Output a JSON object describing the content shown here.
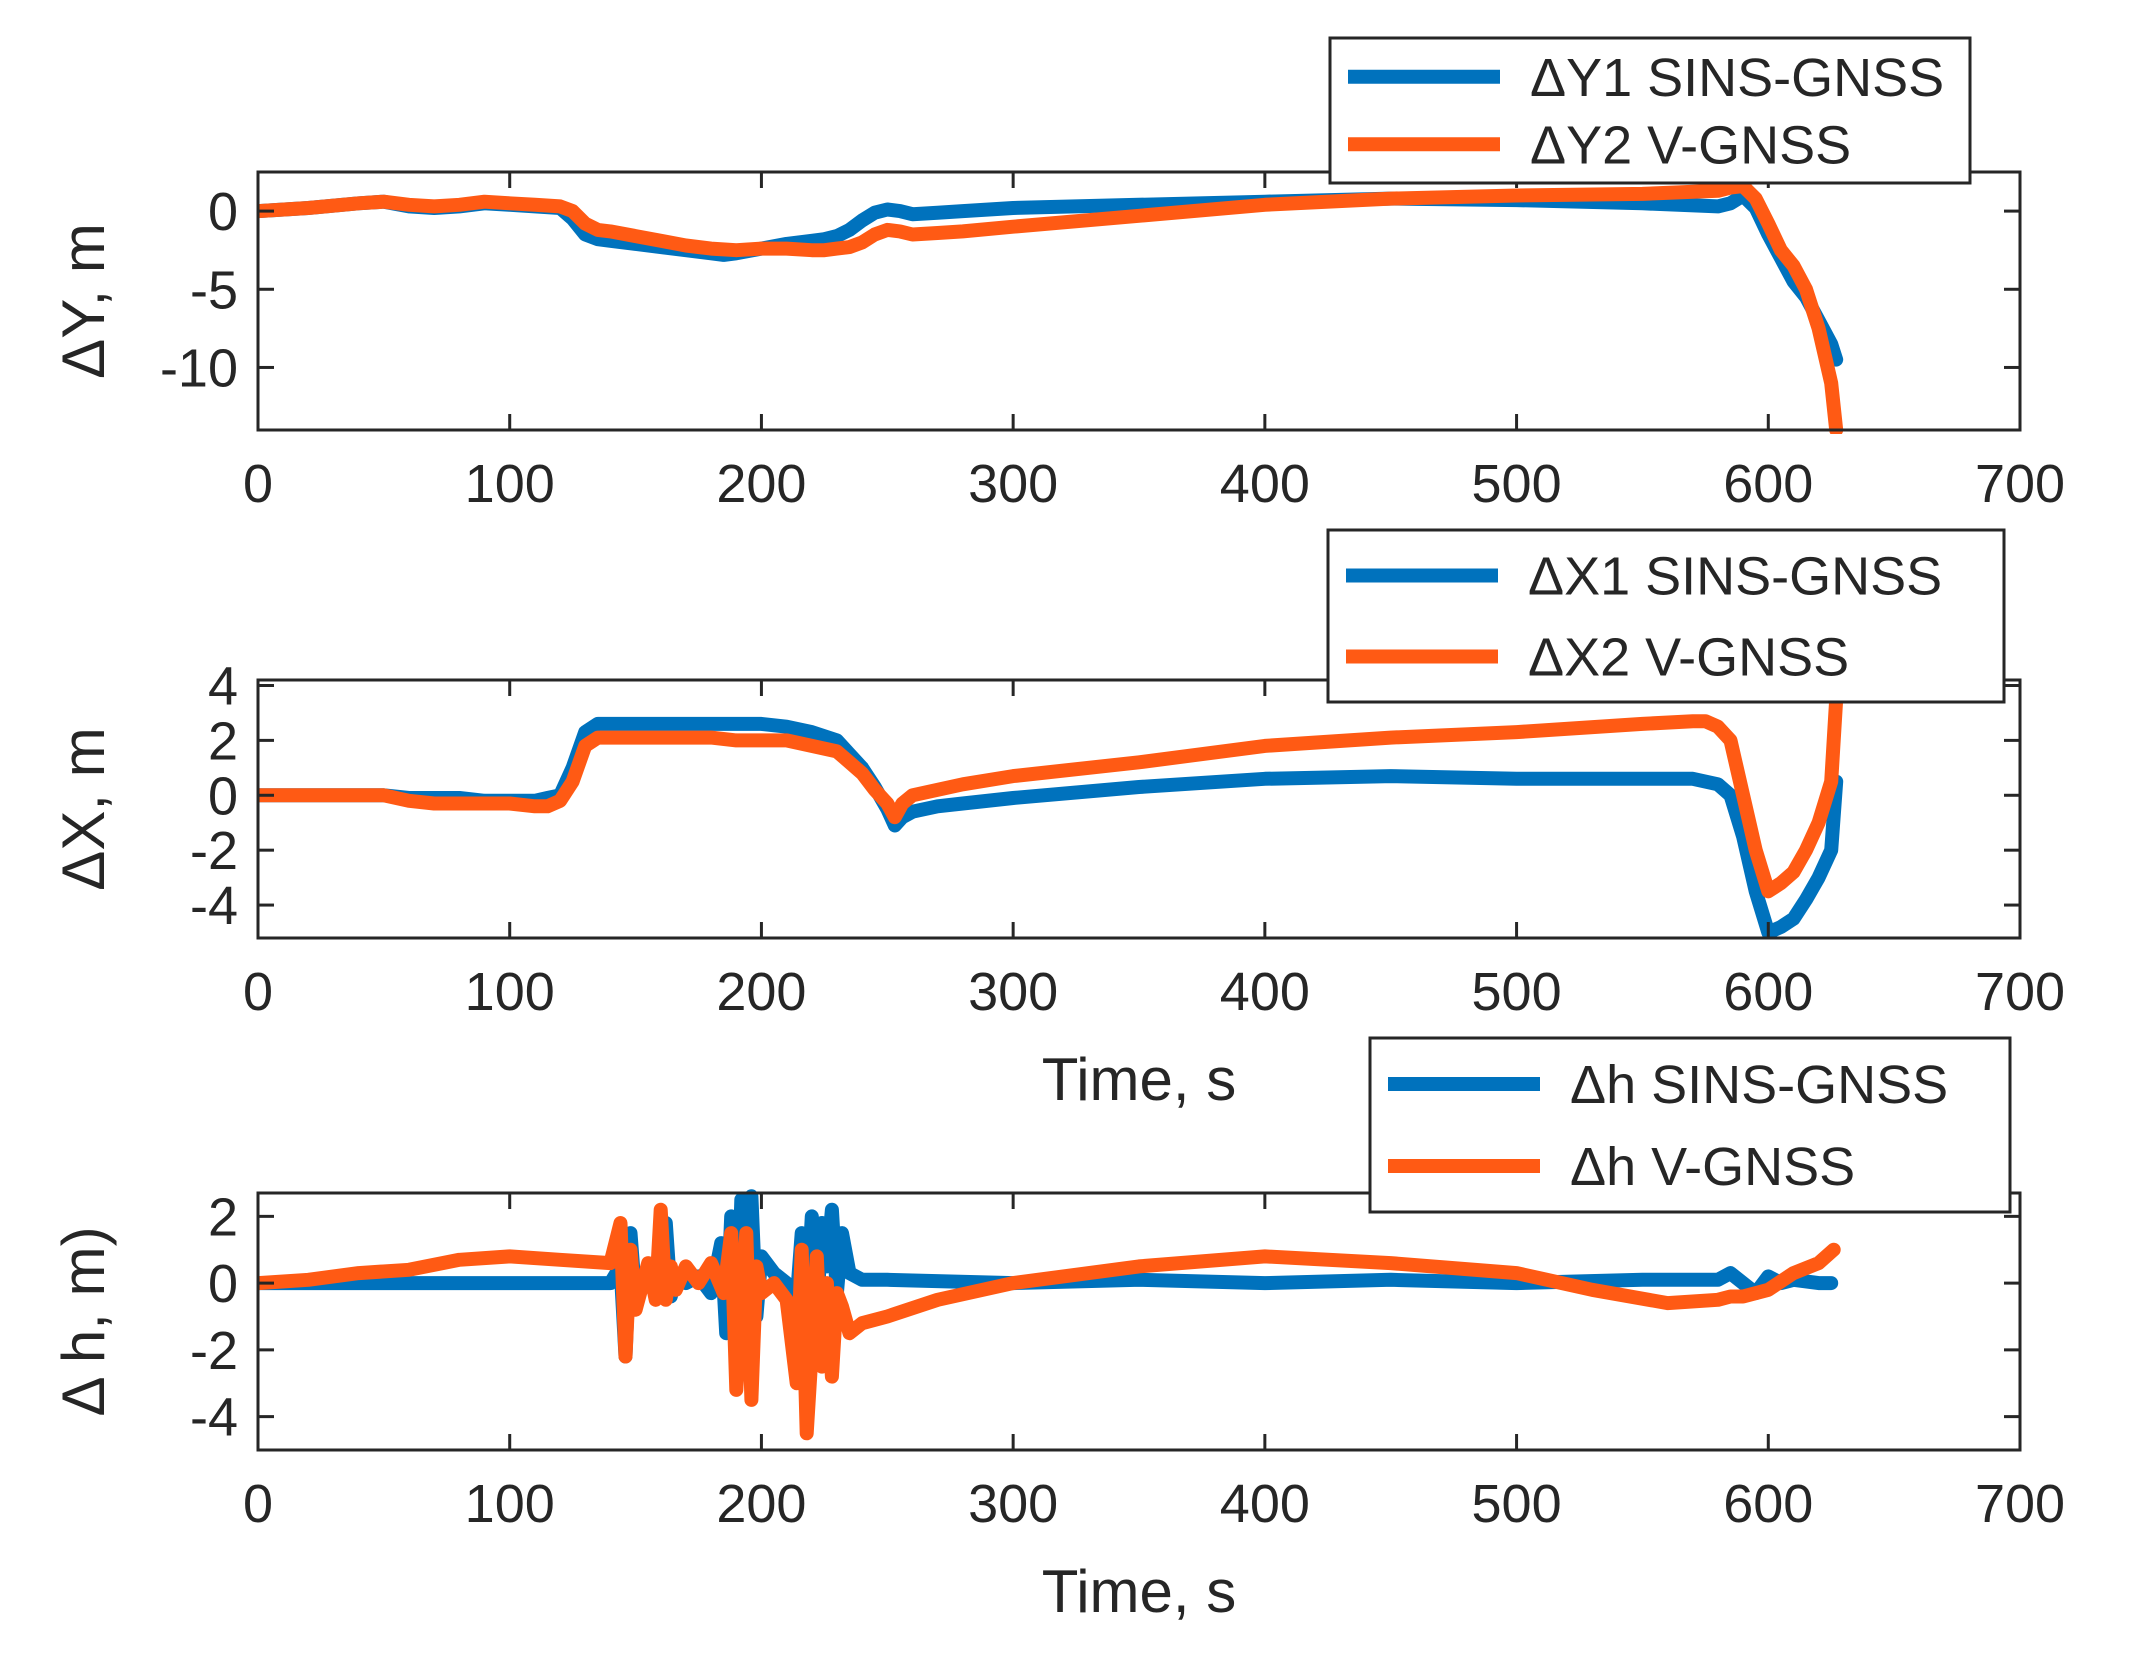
{
  "colors": {
    "sins": "#0072BD",
    "vgnss": "#FF5A14",
    "axes": "#262626",
    "background": "#ffffff"
  },
  "chart_data": [
    {
      "type": "line",
      "xlabel": "",
      "ylabel": "ΔY, m",
      "xlim": [
        0,
        700
      ],
      "ylim": [
        -14,
        2.5
      ],
      "xticks": [
        0,
        100,
        200,
        300,
        400,
        500,
        600,
        700
      ],
      "yticks": [
        0,
        -5,
        -10
      ],
      "legend": "top-right",
      "series": [
        {
          "name": "ΔY1 SINS-GNSS",
          "color": "#0072BD",
          "x": [
            0,
            20,
            40,
            50,
            60,
            70,
            80,
            90,
            100,
            110,
            120,
            125,
            130,
            135,
            140,
            150,
            160,
            170,
            180,
            185,
            190,
            200,
            210,
            220,
            225,
            230,
            235,
            240,
            245,
            250,
            255,
            260,
            270,
            280,
            300,
            350,
            400,
            450,
            500,
            550,
            580,
            585,
            590,
            595,
            600,
            605,
            610,
            615,
            620,
            625,
            627
          ],
          "y": [
            0,
            0.2,
            0.5,
            0.6,
            0.3,
            0.2,
            0.3,
            0.5,
            0.4,
            0.3,
            0.2,
            -0.5,
            -1.5,
            -1.8,
            -1.9,
            -2.1,
            -2.3,
            -2.5,
            -2.7,
            -2.8,
            -2.7,
            -2.4,
            -2.1,
            -1.9,
            -1.8,
            -1.6,
            -1.2,
            -0.6,
            -0.1,
            0.1,
            0,
            -0.2,
            -0.1,
            0,
            0.2,
            0.4,
            0.6,
            0.8,
            0.7,
            0.5,
            0.3,
            0.5,
            1,
            0.2,
            -1.5,
            -3,
            -4.5,
            -5.5,
            -7,
            -8.5,
            -9.5
          ]
        },
        {
          "name": "ΔY2 V-GNSS",
          "color": "#FF5A14",
          "x": [
            0,
            20,
            40,
            50,
            60,
            70,
            80,
            90,
            100,
            110,
            120,
            125,
            130,
            135,
            140,
            150,
            160,
            170,
            180,
            190,
            200,
            210,
            220,
            225,
            230,
            235,
            240,
            245,
            250,
            255,
            260,
            270,
            280,
            300,
            350,
            400,
            450,
            500,
            550,
            580,
            585,
            590,
            595,
            600,
            605,
            610,
            615,
            620,
            625,
            627
          ],
          "y": [
            0,
            0.2,
            0.5,
            0.6,
            0.4,
            0.3,
            0.4,
            0.6,
            0.5,
            0.4,
            0.3,
            0,
            -0.8,
            -1.2,
            -1.3,
            -1.6,
            -1.9,
            -2.2,
            -2.4,
            -2.5,
            -2.4,
            -2.4,
            -2.5,
            -2.5,
            -2.4,
            -2.3,
            -2,
            -1.5,
            -1.2,
            -1.3,
            -1.5,
            -1.4,
            -1.3,
            -1,
            -0.3,
            0.4,
            0.8,
            1,
            1.1,
            1.3,
            1.5,
            1.6,
            0.8,
            -0.8,
            -2.5,
            -3.5,
            -5,
            -7.5,
            -11,
            -14
          ]
        }
      ]
    },
    {
      "type": "line",
      "xlabel": "Time, s",
      "ylabel": "ΔX, m",
      "xlim": [
        0,
        700
      ],
      "ylim": [
        -5.2,
        4.2
      ],
      "xticks": [
        0,
        100,
        200,
        300,
        400,
        500,
        600,
        700
      ],
      "yticks": [
        4,
        2,
        0,
        -2,
        -4
      ],
      "legend": "top-right",
      "series": [
        {
          "name": "ΔX1 SINS-GNSS",
          "color": "#0072BD",
          "x": [
            0,
            20,
            40,
            50,
            60,
            70,
            80,
            90,
            100,
            110,
            115,
            120,
            125,
            130,
            135,
            140,
            150,
            160,
            170,
            180,
            190,
            200,
            210,
            220,
            230,
            235,
            240,
            245,
            250,
            253,
            256,
            260,
            270,
            280,
            300,
            350,
            400,
            450,
            500,
            550,
            570,
            580,
            585,
            590,
            595,
            600,
            605,
            610,
            615,
            620,
            625,
            627
          ],
          "y": [
            0,
            0,
            0,
            0,
            -0.1,
            -0.1,
            -0.1,
            -0.2,
            -0.2,
            -0.2,
            -0.1,
            0,
            1,
            2.3,
            2.6,
            2.6,
            2.6,
            2.6,
            2.6,
            2.6,
            2.6,
            2.6,
            2.5,
            2.3,
            2,
            1.5,
            1,
            0.3,
            -0.5,
            -1.1,
            -0.8,
            -0.6,
            -0.4,
            -0.3,
            -0.1,
            0.3,
            0.6,
            0.7,
            0.6,
            0.6,
            0.6,
            0.4,
            0,
            -1.5,
            -3.5,
            -5,
            -4.8,
            -4.5,
            -3.8,
            -3,
            -2,
            0.5
          ]
        },
        {
          "name": "ΔX2 V-GNSS",
          "color": "#FF5A14",
          "x": [
            0,
            20,
            40,
            50,
            60,
            70,
            80,
            90,
            100,
            110,
            115,
            120,
            125,
            130,
            135,
            140,
            150,
            160,
            170,
            180,
            190,
            200,
            210,
            220,
            230,
            235,
            240,
            245,
            250,
            253,
            256,
            260,
            270,
            280,
            300,
            350,
            400,
            450,
            500,
            550,
            570,
            575,
            580,
            585,
            590,
            595,
            600,
            605,
            610,
            615,
            620,
            625,
            627
          ],
          "y": [
            0,
            0,
            0,
            0,
            -0.2,
            -0.3,
            -0.3,
            -0.3,
            -0.3,
            -0.4,
            -0.4,
            -0.2,
            0.5,
            1.8,
            2.1,
            2.1,
            2.1,
            2.1,
            2.1,
            2.1,
            2,
            2,
            2,
            1.8,
            1.6,
            1.2,
            0.8,
            0.2,
            -0.3,
            -0.8,
            -0.3,
            0,
            0.2,
            0.4,
            0.7,
            1.2,
            1.8,
            2.1,
            2.3,
            2.6,
            2.7,
            2.7,
            2.5,
            2,
            0,
            -2,
            -3.5,
            -3.2,
            -2.8,
            -2,
            -1,
            0.5,
            3.5
          ]
        }
      ]
    },
    {
      "type": "line",
      "xlabel": "Time, s",
      "ylabel": "Δ h, m)",
      "xlim": [
        0,
        700
      ],
      "ylim": [
        -5,
        2.7
      ],
      "xticks": [
        0,
        100,
        200,
        300,
        400,
        500,
        600,
        700
      ],
      "yticks": [
        2,
        0,
        -2,
        -4
      ],
      "legend": "top-right",
      "series": [
        {
          "name": "Δh SINS-GNSS",
          "color": "#0072BD",
          "x": [
            0,
            50,
            100,
            140,
            144,
            146,
            148,
            150,
            155,
            160,
            162,
            164,
            166,
            170,
            175,
            180,
            184,
            186,
            188,
            190,
            192,
            194,
            196,
            198,
            200,
            205,
            210,
            214,
            216,
            218,
            220,
            222,
            224,
            226,
            228,
            230,
            232,
            235,
            240,
            250,
            300,
            350,
            400,
            450,
            500,
            550,
            580,
            585,
            590,
            595,
            600,
            605,
            610,
            620,
            625
          ],
          "y": [
            0,
            0,
            0,
            0,
            0.5,
            -2.2,
            1.5,
            -0.5,
            0.3,
            -0.3,
            1.8,
            -0.4,
            0.3,
            0,
            0.2,
            -0.3,
            1.2,
            -1.5,
            2,
            -2.5,
            2.5,
            -1.5,
            2.6,
            -1,
            0.8,
            0.3,
            0,
            -0.5,
            1.5,
            -0.8,
            2,
            -1,
            1.8,
            0.5,
            2.2,
            -0.3,
            1.5,
            0.3,
            0.1,
            0.1,
            0,
            0.1,
            0,
            0.1,
            0,
            0.1,
            0.1,
            0.3,
            0,
            -0.3,
            0.2,
            0,
            0.1,
            0,
            0
          ]
        },
        {
          "name": "Δh V-GNSS",
          "color": "#FF5A14",
          "x": [
            0,
            20,
            40,
            60,
            80,
            100,
            120,
            140,
            144,
            146,
            148,
            150,
            155,
            158,
            160,
            162,
            164,
            166,
            170,
            175,
            180,
            185,
            188,
            190,
            192,
            194,
            196,
            198,
            200,
            205,
            210,
            214,
            216,
            218,
            220,
            222,
            224,
            226,
            228,
            230,
            232,
            235,
            240,
            250,
            270,
            300,
            350,
            400,
            450,
            500,
            530,
            560,
            580,
            585,
            590,
            600,
            610,
            620,
            626
          ],
          "y": [
            0,
            0.1,
            0.3,
            0.4,
            0.7,
            0.8,
            0.7,
            0.6,
            1.8,
            -2.2,
            1,
            -0.8,
            0.6,
            -0.5,
            2.2,
            -0.5,
            0.5,
            -0.2,
            0.5,
            0,
            0.6,
            -0.3,
            1.5,
            -3.2,
            -0.5,
            1.5,
            -3.5,
            0.5,
            -0.3,
            0,
            -0.5,
            -3,
            1,
            -4.5,
            -2,
            0.8,
            -2.5,
            0,
            -2.8,
            -0.3,
            -0.7,
            -1.5,
            -1.2,
            -1,
            -0.5,
            0,
            0.5,
            0.8,
            0.6,
            0.3,
            -0.2,
            -0.6,
            -0.5,
            -0.4,
            -0.4,
            -0.2,
            0.3,
            0.6,
            1
          ]
        }
      ]
    }
  ]
}
